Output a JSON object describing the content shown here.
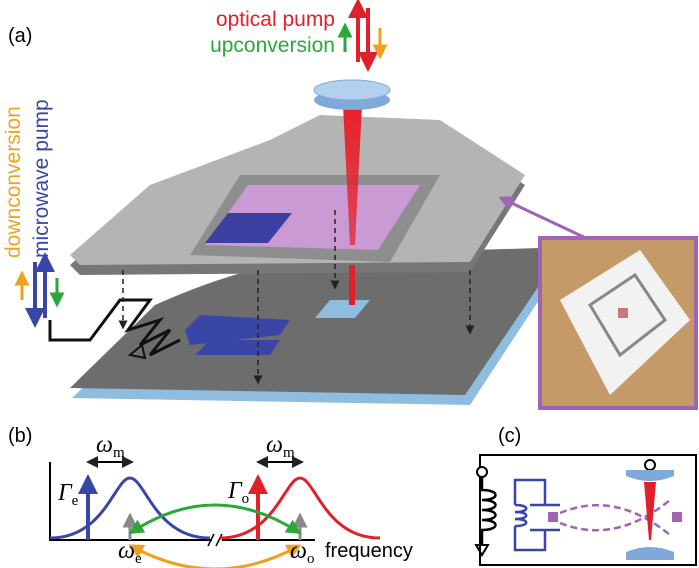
{
  "panel_a": {
    "label": "(a)",
    "optical_pump": "optical pump",
    "upconversion": "upconversion",
    "downconversion": "downconversion",
    "microwave_pump": "microwave pump"
  },
  "panel_b": {
    "label": "(b)",
    "omega_m_left": {
      "symbol": "ω",
      "sub": "m"
    },
    "omega_m_right": {
      "symbol": "ω",
      "sub": "m"
    },
    "gamma_e": {
      "symbol": "Γ",
      "sub": "e"
    },
    "gamma_o": {
      "symbol": "Γ",
      "sub": "o"
    },
    "omega_e": {
      "symbol": "ω",
      "sub": "e"
    },
    "omega_o": {
      "symbol": "ω",
      "sub": "o"
    },
    "axis_label": "frequency"
  },
  "panel_c": {
    "label": "(c)"
  }
}
